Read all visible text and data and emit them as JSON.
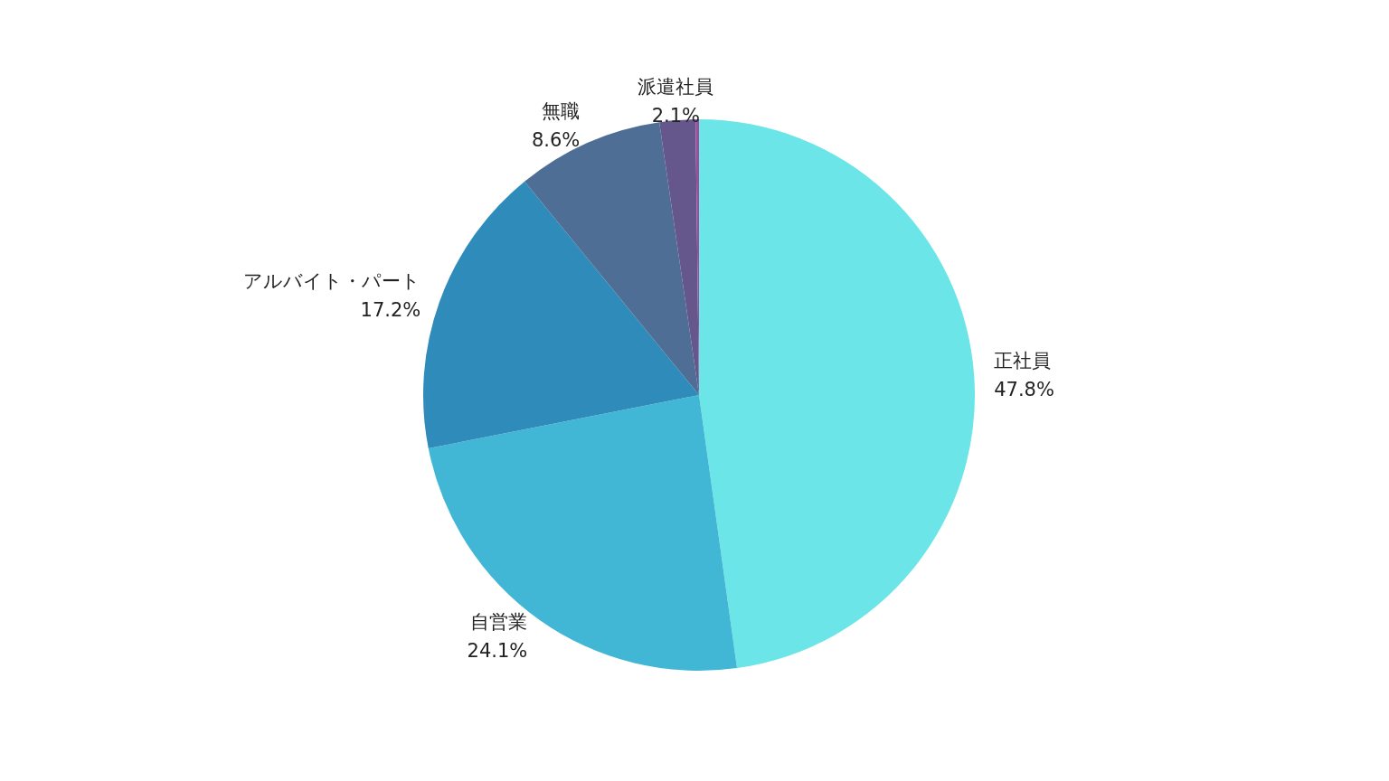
{
  "chart_data": {
    "type": "pie",
    "categories": [
      "正社員",
      "自営業",
      "アルバイト・パート",
      "無職",
      "派遣社員",
      null
    ],
    "values": [
      47.8,
      24.1,
      17.2,
      8.6,
      2.1,
      0.2
    ],
    "value_labels": [
      "47.8%",
      "24.1%",
      "17.2%",
      "8.6%",
      "2.1%",
      null
    ],
    "colors": [
      "#6ce5e8",
      "#42b7d5",
      "#2e8bba",
      "#4f6e96",
      "#65578c",
      "#9a4f9a"
    ]
  }
}
